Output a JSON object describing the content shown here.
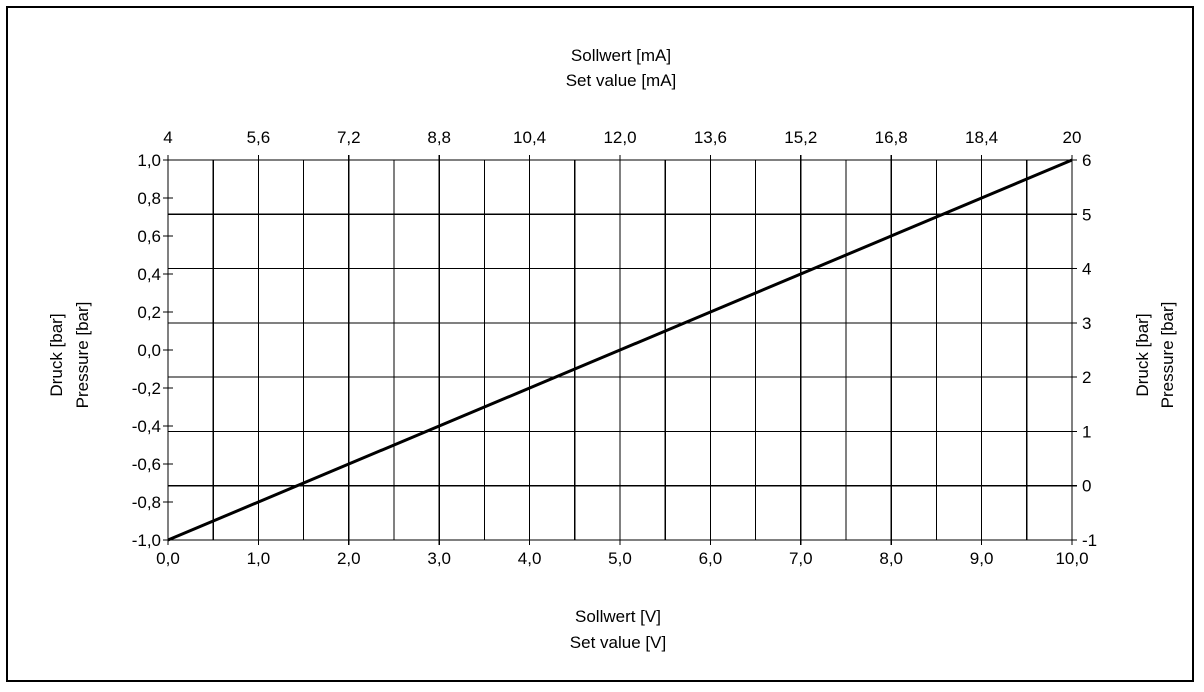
{
  "chart_data": {
    "type": "line",
    "x_bottom": {
      "label_line1": "Sollwert [V]",
      "label_line2": "Set value [V]",
      "range": [
        0,
        10
      ],
      "ticks": [
        "0,0",
        "1,0",
        "2,0",
        "3,0",
        "4,0",
        "5,0",
        "6,0",
        "7,0",
        "8,0",
        "9,0",
        "10,0"
      ]
    },
    "x_top": {
      "label_line1": "Sollwert [mA]",
      "label_line2": "Set value [mA]",
      "range": [
        4,
        20
      ],
      "ticks": [
        "4",
        "5,6",
        "7,2",
        "8,8",
        "10,4",
        "12,0",
        "13,6",
        "15,2",
        "16,8",
        "18,4",
        "20"
      ]
    },
    "y_left": {
      "label_line1": "Druck [bar]",
      "label_line2": "Pressure [bar]",
      "range": [
        -1,
        1
      ],
      "ticks": [
        "-1,0",
        "-0,8",
        "-0,6",
        "-0,4",
        "-0,2",
        "0,0",
        "0,2",
        "0,4",
        "0,6",
        "0,8",
        "1,0"
      ]
    },
    "y_right": {
      "label_line1": "Druck [bar]",
      "label_line2": "Pressure [bar]",
      "range": [
        -1,
        6
      ],
      "ticks": [
        "-1",
        "0",
        "1",
        "2",
        "3",
        "4",
        "5",
        "6"
      ]
    },
    "grid": true,
    "series": [
      {
        "x": [
          0,
          10
        ],
        "y": [
          -1,
          1
        ],
        "color": "#000000"
      }
    ]
  }
}
